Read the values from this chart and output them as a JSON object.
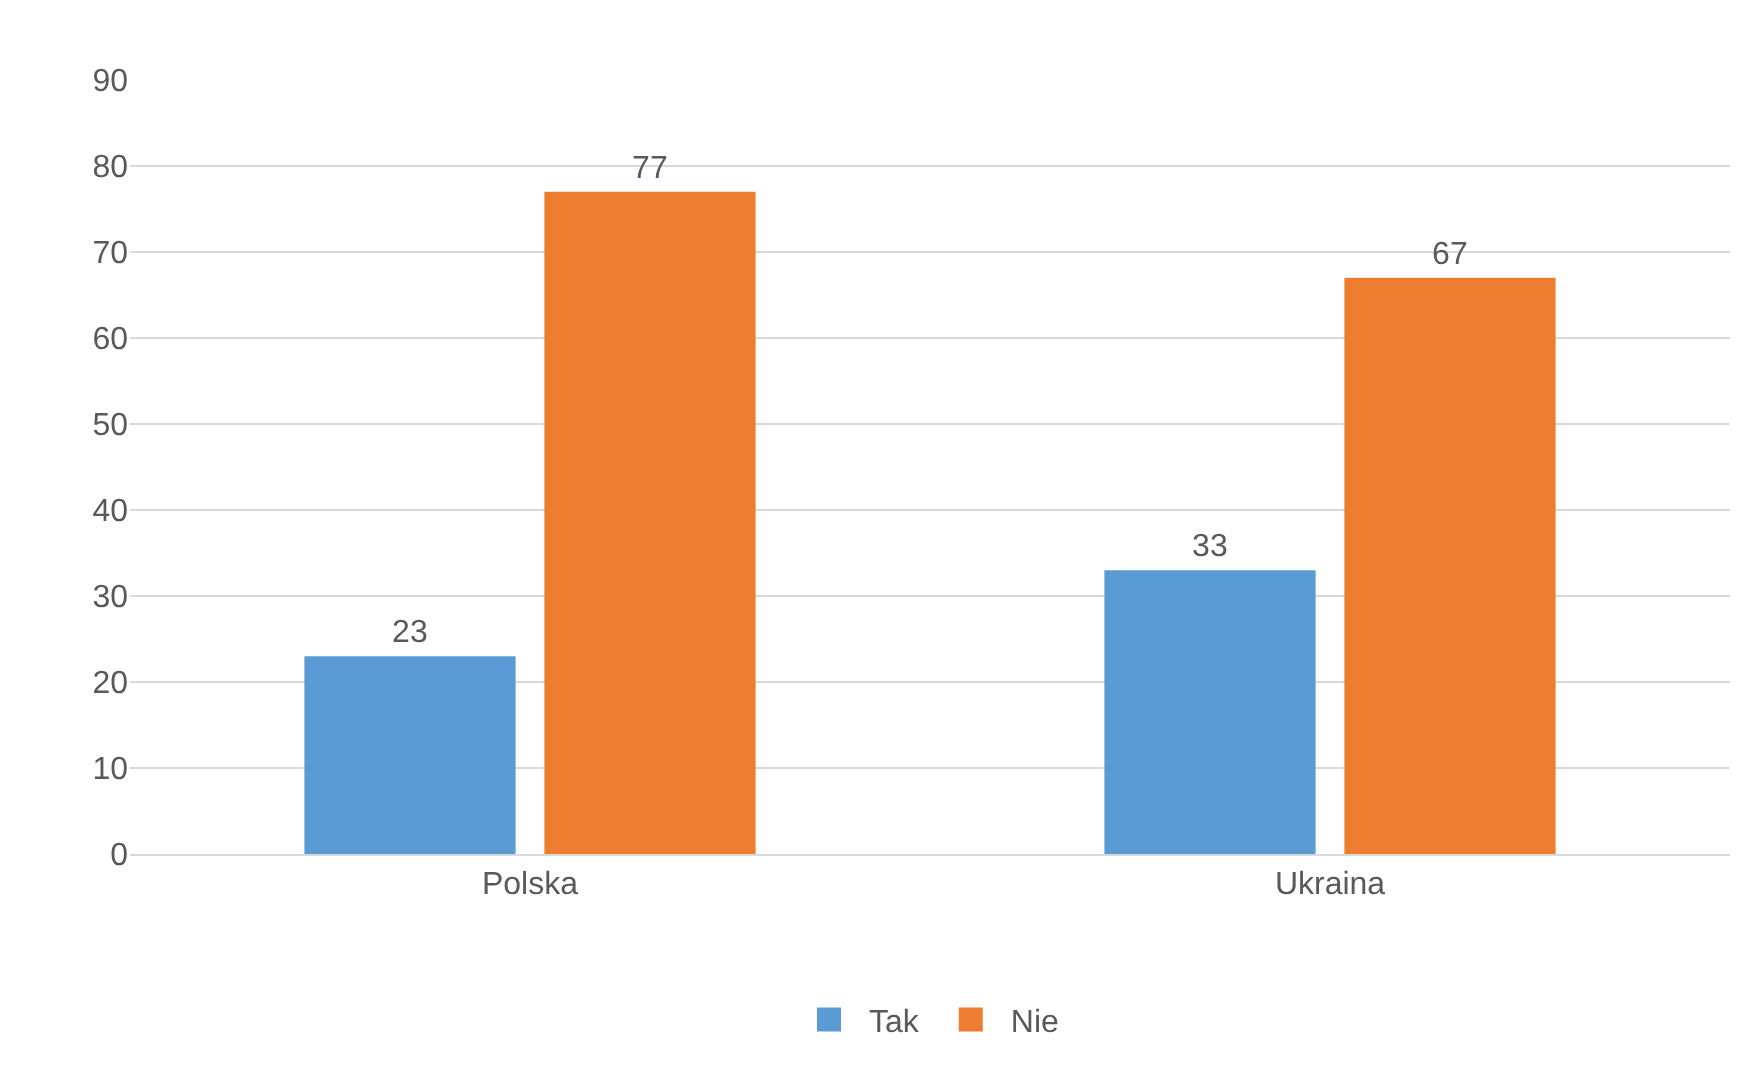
{
  "chart_data": {
    "type": "bar",
    "categories": [
      "Polska",
      "Ukraina"
    ],
    "series": [
      {
        "name": "Tak",
        "color": "#5b9bd5",
        "values": [
          23,
          33
        ]
      },
      {
        "name": "Nie",
        "color": "#ed7d31",
        "values": [
          77,
          67
        ]
      }
    ],
    "ylim": [
      0,
      90
    ],
    "yticks": [
      0,
      10,
      20,
      30,
      40,
      50,
      60,
      70,
      80,
      90
    ],
    "grid": "y",
    "legend": "bottom",
    "data_labels": true
  }
}
